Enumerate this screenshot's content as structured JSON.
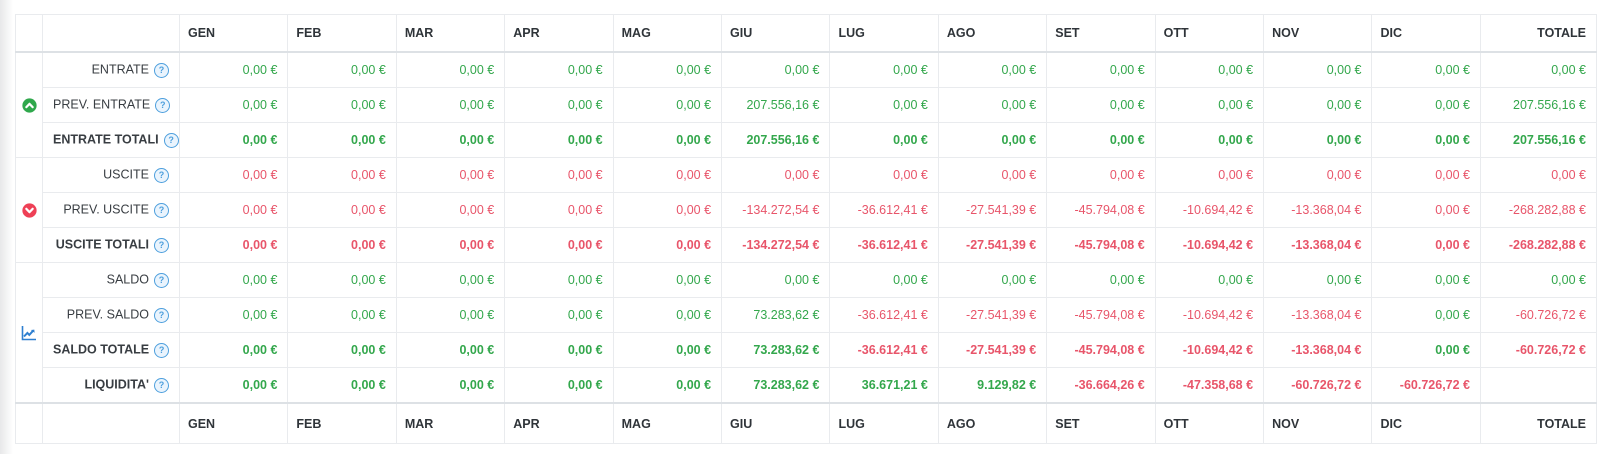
{
  "colors": {
    "positive": "#33a74c",
    "negative": "#e8556a",
    "entrate_icon": "#2fa84c",
    "uscite_icon": "#ee4056",
    "saldo_icon": "#2e7fd0",
    "help_icon": "#4d9fdd"
  },
  "table": {
    "months": [
      "GEN",
      "FEB",
      "MAR",
      "APR",
      "MAG",
      "GIU",
      "LUG",
      "AGO",
      "SET",
      "OTT",
      "NOV",
      "DIC"
    ],
    "total_label": "TOTALE",
    "help_glyph": "?",
    "groups": [
      {
        "icon": "arrow-up-circle-icon",
        "rows": [
          {
            "label": "ENTRATE",
            "bold": false,
            "values": [
              "0,00 €",
              "0,00 €",
              "0,00 €",
              "0,00 €",
              "0,00 €",
              "0,00 €",
              "0,00 €",
              "0,00 €",
              "0,00 €",
              "0,00 €",
              "0,00 €",
              "0,00 €",
              "0,00 €"
            ],
            "signs": [
              "p",
              "p",
              "p",
              "p",
              "p",
              "p",
              "p",
              "p",
              "p",
              "p",
              "p",
              "p",
              "p"
            ]
          },
          {
            "label": "PREV. ENTRATE",
            "bold": false,
            "values": [
              "0,00 €",
              "0,00 €",
              "0,00 €",
              "0,00 €",
              "0,00 €",
              "207.556,16 €",
              "0,00 €",
              "0,00 €",
              "0,00 €",
              "0,00 €",
              "0,00 €",
              "0,00 €",
              "207.556,16 €"
            ],
            "signs": [
              "p",
              "p",
              "p",
              "p",
              "p",
              "p",
              "p",
              "p",
              "p",
              "p",
              "p",
              "p",
              "p"
            ]
          },
          {
            "label": "ENTRATE TOTALI",
            "bold": true,
            "values": [
              "0,00 €",
              "0,00 €",
              "0,00 €",
              "0,00 €",
              "0,00 €",
              "207.556,16 €",
              "0,00 €",
              "0,00 €",
              "0,00 €",
              "0,00 €",
              "0,00 €",
              "0,00 €",
              "207.556,16 €"
            ],
            "signs": [
              "p",
              "p",
              "p",
              "p",
              "p",
              "p",
              "p",
              "p",
              "p",
              "p",
              "p",
              "p",
              "p"
            ]
          }
        ]
      },
      {
        "icon": "arrow-down-circle-icon",
        "rows": [
          {
            "label": "USCITE",
            "bold": false,
            "values": [
              "0,00 €",
              "0,00 €",
              "0,00 €",
              "0,00 €",
              "0,00 €",
              "0,00 €",
              "0,00 €",
              "0,00 €",
              "0,00 €",
              "0,00 €",
              "0,00 €",
              "0,00 €",
              "0,00 €"
            ],
            "signs": [
              "n",
              "n",
              "n",
              "n",
              "n",
              "n",
              "n",
              "n",
              "n",
              "n",
              "n",
              "n",
              "n"
            ]
          },
          {
            "label": "PREV. USCITE",
            "bold": false,
            "values": [
              "0,00 €",
              "0,00 €",
              "0,00 €",
              "0,00 €",
              "0,00 €",
              "-134.272,54 €",
              "-36.612,41 €",
              "-27.541,39 €",
              "-45.794,08 €",
              "-10.694,42 €",
              "-13.368,04 €",
              "0,00 €",
              "-268.282,88 €"
            ],
            "signs": [
              "n",
              "n",
              "n",
              "n",
              "n",
              "n",
              "n",
              "n",
              "n",
              "n",
              "n",
              "n",
              "n"
            ]
          },
          {
            "label": "USCITE TOTALI",
            "bold": true,
            "values": [
              "0,00 €",
              "0,00 €",
              "0,00 €",
              "0,00 €",
              "0,00 €",
              "-134.272,54 €",
              "-36.612,41 €",
              "-27.541,39 €",
              "-45.794,08 €",
              "-10.694,42 €",
              "-13.368,04 €",
              "0,00 €",
              "-268.282,88 €"
            ],
            "signs": [
              "n",
              "n",
              "n",
              "n",
              "n",
              "n",
              "n",
              "n",
              "n",
              "n",
              "n",
              "n",
              "n"
            ]
          }
        ]
      },
      {
        "icon": "chart-line-icon",
        "rows": [
          {
            "label": "SALDO",
            "bold": false,
            "values": [
              "0,00 €",
              "0,00 €",
              "0,00 €",
              "0,00 €",
              "0,00 €",
              "0,00 €",
              "0,00 €",
              "0,00 €",
              "0,00 €",
              "0,00 €",
              "0,00 €",
              "0,00 €",
              "0,00 €"
            ],
            "signs": [
              "p",
              "p",
              "p",
              "p",
              "p",
              "p",
              "p",
              "p",
              "p",
              "p",
              "p",
              "p",
              "p"
            ]
          },
          {
            "label": "PREV. SALDO",
            "bold": false,
            "values": [
              "0,00 €",
              "0,00 €",
              "0,00 €",
              "0,00 €",
              "0,00 €",
              "73.283,62 €",
              "-36.612,41 €",
              "-27.541,39 €",
              "-45.794,08 €",
              "-10.694,42 €",
              "-13.368,04 €",
              "0,00 €",
              "-60.726,72 €"
            ],
            "signs": [
              "p",
              "p",
              "p",
              "p",
              "p",
              "p",
              "n",
              "n",
              "n",
              "n",
              "n",
              "p",
              "n"
            ]
          },
          {
            "label": "SALDO TOTALE",
            "bold": true,
            "values": [
              "0,00 €",
              "0,00 €",
              "0,00 €",
              "0,00 €",
              "0,00 €",
              "73.283,62 €",
              "-36.612,41 €",
              "-27.541,39 €",
              "-45.794,08 €",
              "-10.694,42 €",
              "-13.368,04 €",
              "0,00 €",
              "-60.726,72 €"
            ],
            "signs": [
              "p",
              "p",
              "p",
              "p",
              "p",
              "p",
              "n",
              "n",
              "n",
              "n",
              "n",
              "p",
              "n"
            ]
          },
          {
            "label": "LIQUIDITA'",
            "bold": true,
            "values": [
              "0,00 €",
              "0,00 €",
              "0,00 €",
              "0,00 €",
              "0,00 €",
              "73.283,62 €",
              "36.671,21 €",
              "9.129,82 €",
              "-36.664,26 €",
              "-47.358,68 €",
              "-60.726,72 €",
              "-60.726,72 €",
              ""
            ],
            "signs": [
              "p",
              "p",
              "p",
              "p",
              "p",
              "p",
              "p",
              "p",
              "n",
              "n",
              "n",
              "n",
              "e"
            ]
          }
        ]
      }
    ]
  }
}
